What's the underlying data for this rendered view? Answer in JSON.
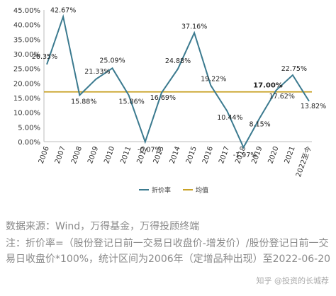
{
  "chart_data": {
    "type": "line",
    "title": "",
    "xlabel": "",
    "ylabel": "",
    "ylim": [
      0,
      45
    ],
    "yticks": [
      "0.00%",
      "5.00%",
      "10.00%",
      "15.00%",
      "20.00%",
      "25.00%",
      "30.00%",
      "35.00%",
      "40.00%",
      "45.00%"
    ],
    "categories": [
      "2006",
      "2007",
      "2008",
      "2009",
      "2010",
      "2011",
      "2012",
      "2013",
      "2014",
      "2015",
      "2016",
      "2017",
      "2018",
      "2019",
      "2020",
      "2021",
      "2022至今"
    ],
    "series": [
      {
        "name": "折价率",
        "color": "#3b7a8f",
        "values": [
          26.35,
          42.67,
          15.88,
          21.33,
          25.09,
          15.86,
          -0.07,
          16.69,
          24.88,
          37.16,
          19.22,
          10.44,
          -1.97,
          8.15,
          17.62,
          22.75,
          13.82
        ],
        "labels": [
          "26.35%",
          "42.67%",
          "15.88%",
          "21.33%",
          "25.09%",
          "15.86%",
          "-0.07%",
          "16.69%",
          "24.88%",
          "37.16%",
          "19.22%",
          "10.44%",
          "-1.97%",
          "8.15%",
          "17.62%",
          "22.75%",
          "13.82%"
        ]
      },
      {
        "name": "均值",
        "color": "#c9a227",
        "value": 17.0,
        "label": "17.00%"
      }
    ],
    "legend": "bottom-center",
    "grid": false
  },
  "captions": {
    "source": "数据来源：Wind，万得基金，万得投顾终端",
    "note": "注：折价率=（股份登记日前一交易日收盘价-增发价）/股份登记日前一交易日收盘价*100%，统计区间为2006年（定增品种出现）至2022-06-20"
  },
  "watermark": "知乎 @投资的长城荐"
}
